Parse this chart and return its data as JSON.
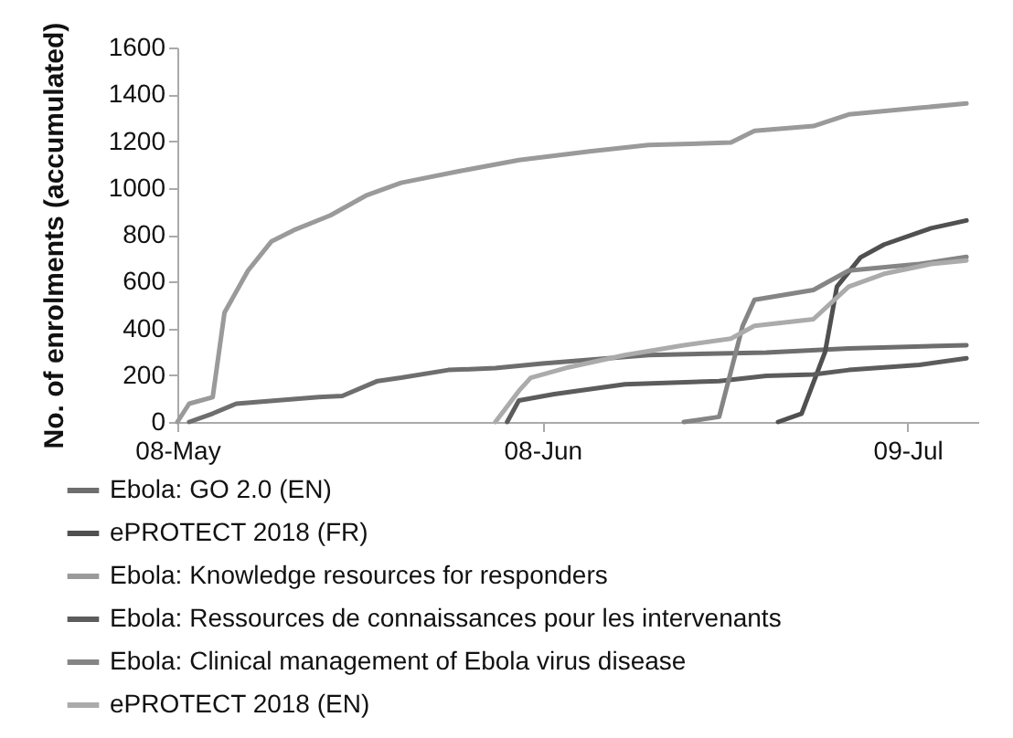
{
  "chart_data": {
    "type": "line",
    "ylabel": "No. of enrolments (accumulated)",
    "xlim": [
      "2018-05-08",
      "2018-07-15"
    ],
    "xticks": [
      {
        "value": "2018-05-08",
        "label": "08-May"
      },
      {
        "value": "2018-06-08",
        "label": "08-Jun"
      },
      {
        "value": "2018-07-09",
        "label": "09-Jul"
      }
    ],
    "ylim": [
      0,
      1600
    ],
    "yticks": [
      0,
      200,
      400,
      600,
      800,
      1000,
      1200,
      1400,
      1600
    ],
    "grid": false,
    "legend": "bottom",
    "line_style": "solid",
    "series": [
      {
        "name": "Ebola: GO 2.0 (EN)",
        "color": "#6e6e6e",
        "x": [
          "2018-05-09",
          "2018-05-11",
          "2018-05-13",
          "2018-05-20",
          "2018-05-22",
          "2018-05-25",
          "2018-05-27",
          "2018-05-31",
          "2018-06-04",
          "2018-06-08",
          "2018-06-17",
          "2018-06-27",
          "2018-07-04",
          "2018-07-14"
        ],
        "values": [
          0,
          36,
          78,
          106,
          111,
          175,
          189,
          222,
          230,
          250,
          286,
          297,
          314,
          328
        ]
      },
      {
        "name": "ePROTECT 2018 (FR)",
        "color": "#505050",
        "x": [
          "2018-06-28",
          "2018-06-30",
          "2018-07-02",
          "2018-07-03",
          "2018-07-05",
          "2018-07-07",
          "2018-07-11",
          "2018-07-14"
        ],
        "values": [
          0,
          36,
          300,
          578,
          703,
          758,
          828,
          861
        ]
      },
      {
        "name": "Ebola: Knowledge resources for responders",
        "color": "#9a9a9a",
        "x": [
          "2018-05-08",
          "2018-05-09",
          "2018-05-11",
          "2018-05-12",
          "2018-05-14",
          "2018-05-16",
          "2018-05-18",
          "2018-05-21",
          "2018-05-24",
          "2018-05-27",
          "2018-06-01",
          "2018-06-06",
          "2018-06-12",
          "2018-06-17",
          "2018-06-24",
          "2018-06-26",
          "2018-07-01",
          "2018-07-04",
          "2018-07-10",
          "2018-07-14"
        ],
        "values": [
          0,
          78,
          106,
          467,
          647,
          772,
          822,
          883,
          967,
          1022,
          1072,
          1119,
          1156,
          1183,
          1194,
          1244,
          1264,
          1314,
          1342,
          1361
        ]
      },
      {
        "name": "Ebola: Ressources de connaissances pour les intervenants",
        "color": "#5c5c5c",
        "x": [
          "2018-06-05",
          "2018-06-06",
          "2018-06-09",
          "2018-06-15",
          "2018-06-23",
          "2018-06-27",
          "2018-07-01",
          "2018-07-04",
          "2018-07-10",
          "2018-07-14"
        ],
        "values": [
          0,
          92,
          119,
          161,
          175,
          197,
          203,
          222,
          244,
          272
        ]
      },
      {
        "name": "Ebola: Clinical management of Ebola virus disease",
        "color": "#858585",
        "x": [
          "2018-06-20",
          "2018-06-23",
          "2018-06-25",
          "2018-06-26",
          "2018-07-01",
          "2018-07-04",
          "2018-07-10",
          "2018-07-14"
        ],
        "values": [
          0,
          22,
          411,
          522,
          564,
          647,
          675,
          705
        ]
      },
      {
        "name": "ePROTECT 2018 (EN)",
        "color": "#ababab",
        "x": [
          "2018-06-04",
          "2018-06-06",
          "2018-06-07",
          "2018-06-10",
          "2018-06-15",
          "2018-06-20",
          "2018-06-24",
          "2018-06-26",
          "2018-07-01",
          "2018-07-04",
          "2018-07-07",
          "2018-07-11",
          "2018-07-14"
        ],
        "values": [
          0,
          133,
          189,
          231,
          286,
          328,
          356,
          411,
          439,
          578,
          633,
          675,
          690
        ]
      }
    ]
  }
}
